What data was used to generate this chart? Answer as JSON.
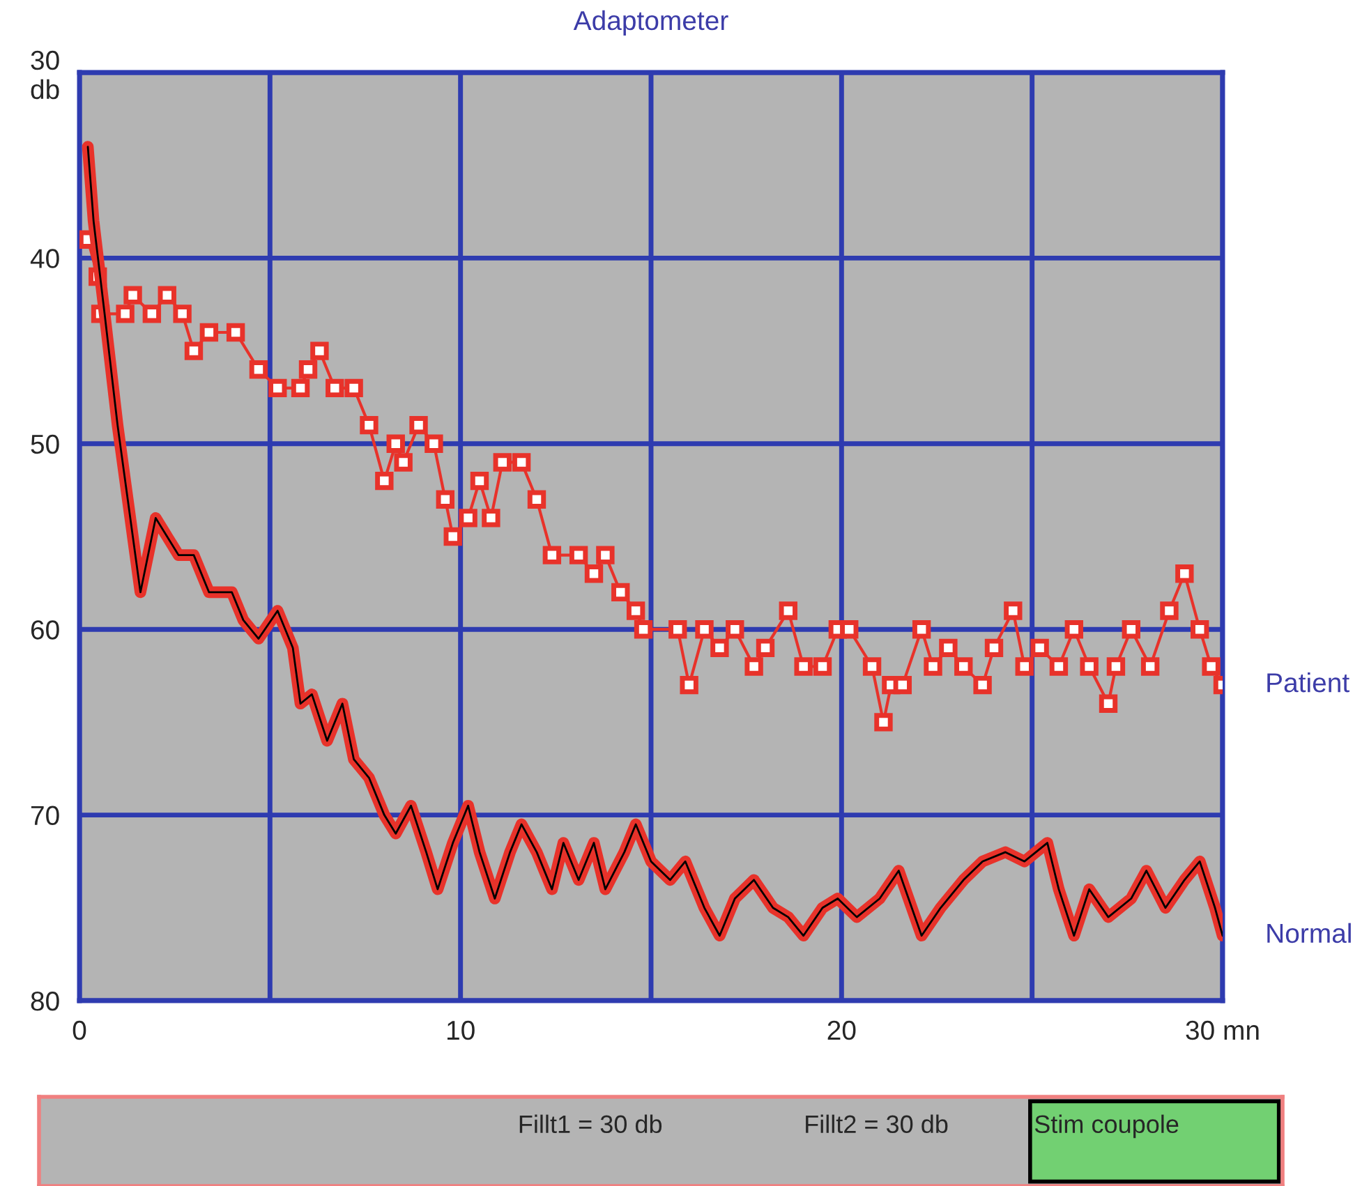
{
  "chart_data": {
    "type": "line",
    "title": "Adaptometer",
    "xlim": [
      0,
      30
    ],
    "ylim": [
      80,
      30
    ],
    "xticks": [
      0,
      10,
      20,
      {
        "value": 30,
        "label": "30 mn"
      }
    ],
    "yticks": [
      {
        "value": 30,
        "label": "30\ndb"
      },
      40,
      50,
      60,
      70,
      80
    ],
    "grid": true,
    "legend": false,
    "series": [
      {
        "name": "Patient",
        "color": "#e8322a",
        "marker": "square",
        "x": [
          0.22,
          0.48,
          0.55,
          1.2,
          1.4,
          1.9,
          2.3,
          2.7,
          3.0,
          3.4,
          4.1,
          4.7,
          5.2,
          5.8,
          6.0,
          6.3,
          6.7,
          7.2,
          7.6,
          8.0,
          8.3,
          8.5,
          8.9,
          9.3,
          9.6,
          9.8,
          10.2,
          10.5,
          10.8,
          11.1,
          11.6,
          12.0,
          12.4,
          13.1,
          13.5,
          13.8,
          14.2,
          14.6,
          14.8,
          15.7,
          16.0,
          16.4,
          16.8,
          17.2,
          17.7,
          18.0,
          18.6,
          19.0,
          19.5,
          19.9,
          20.2,
          20.8,
          21.1,
          21.3,
          21.6,
          22.1,
          22.4,
          22.8,
          23.2,
          23.7,
          24.0,
          24.5,
          24.8,
          25.2,
          25.7,
          26.1,
          26.5,
          27.0,
          27.2,
          27.6,
          28.1,
          28.6,
          29.0,
          29.4,
          29.7,
          30.0
        ],
        "values": [
          39,
          41,
          43,
          43,
          42,
          43,
          42,
          43,
          45,
          44,
          44,
          46,
          47,
          47,
          46,
          45,
          47,
          47,
          49,
          52,
          50,
          51,
          49,
          50,
          53,
          55,
          54,
          52,
          54,
          51,
          51,
          53,
          56,
          56,
          57,
          56,
          58,
          59,
          60,
          60,
          63,
          60,
          61,
          60,
          62,
          61,
          59,
          62,
          62,
          60,
          60,
          62,
          65,
          63,
          63,
          60,
          62,
          61,
          62,
          63,
          61,
          59,
          62,
          61,
          62,
          60,
          62,
          64,
          62,
          60,
          62,
          59,
          57,
          60,
          62,
          63
        ]
      },
      {
        "name": "Normal",
        "color": "#e8322a",
        "marker": "none",
        "x": [
          0.22,
          0.37,
          0.66,
          1.0,
          1.4,
          1.6,
          2.0,
          2.3,
          2.6,
          3.0,
          3.4,
          4.0,
          4.3,
          4.7,
          5.2,
          5.6,
          5.8,
          6.1,
          6.5,
          6.9,
          7.2,
          7.6,
          8.0,
          8.3,
          8.7,
          9.1,
          9.4,
          9.8,
          10.2,
          10.5,
          10.9,
          11.3,
          11.6,
          12.0,
          12.4,
          12.7,
          13.1,
          13.5,
          13.8,
          14.3,
          14.6,
          15.0,
          15.5,
          15.9,
          16.4,
          16.8,
          17.2,
          17.7,
          18.2,
          18.6,
          19.0,
          19.5,
          19.9,
          20.4,
          21.0,
          21.5,
          22.1,
          22.6,
          23.2,
          23.7,
          24.3,
          24.8,
          25.4,
          25.7,
          26.1,
          26.5,
          27.0,
          27.6,
          28.0,
          28.5,
          29.0,
          29.4,
          29.8,
          30.0
        ],
        "values": [
          34,
          38,
          43,
          49,
          55,
          58,
          54,
          55,
          56,
          56,
          58,
          58,
          59.5,
          60.5,
          59,
          61,
          64,
          63.5,
          66,
          64,
          67,
          68,
          70,
          71,
          69.5,
          72,
          74,
          71.5,
          69.5,
          72,
          74.5,
          72,
          70.5,
          72,
          74,
          71.5,
          73.5,
          71.5,
          74,
          72,
          70.5,
          72.5,
          73.5,
          72.5,
          75,
          76.5,
          74.5,
          73.5,
          75,
          75.5,
          76.5,
          75,
          74.5,
          75.5,
          74.5,
          73,
          76.5,
          75,
          73.5,
          72.5,
          72,
          72.5,
          71.5,
          74,
          76.5,
          74,
          75.5,
          74.5,
          73,
          75,
          73.5,
          72.5,
          75,
          76.5
        ]
      }
    ],
    "annotations": [
      "Fillt1 = 30 db",
      "Fillt2 = 30 db",
      "Stim coupole"
    ]
  }
}
